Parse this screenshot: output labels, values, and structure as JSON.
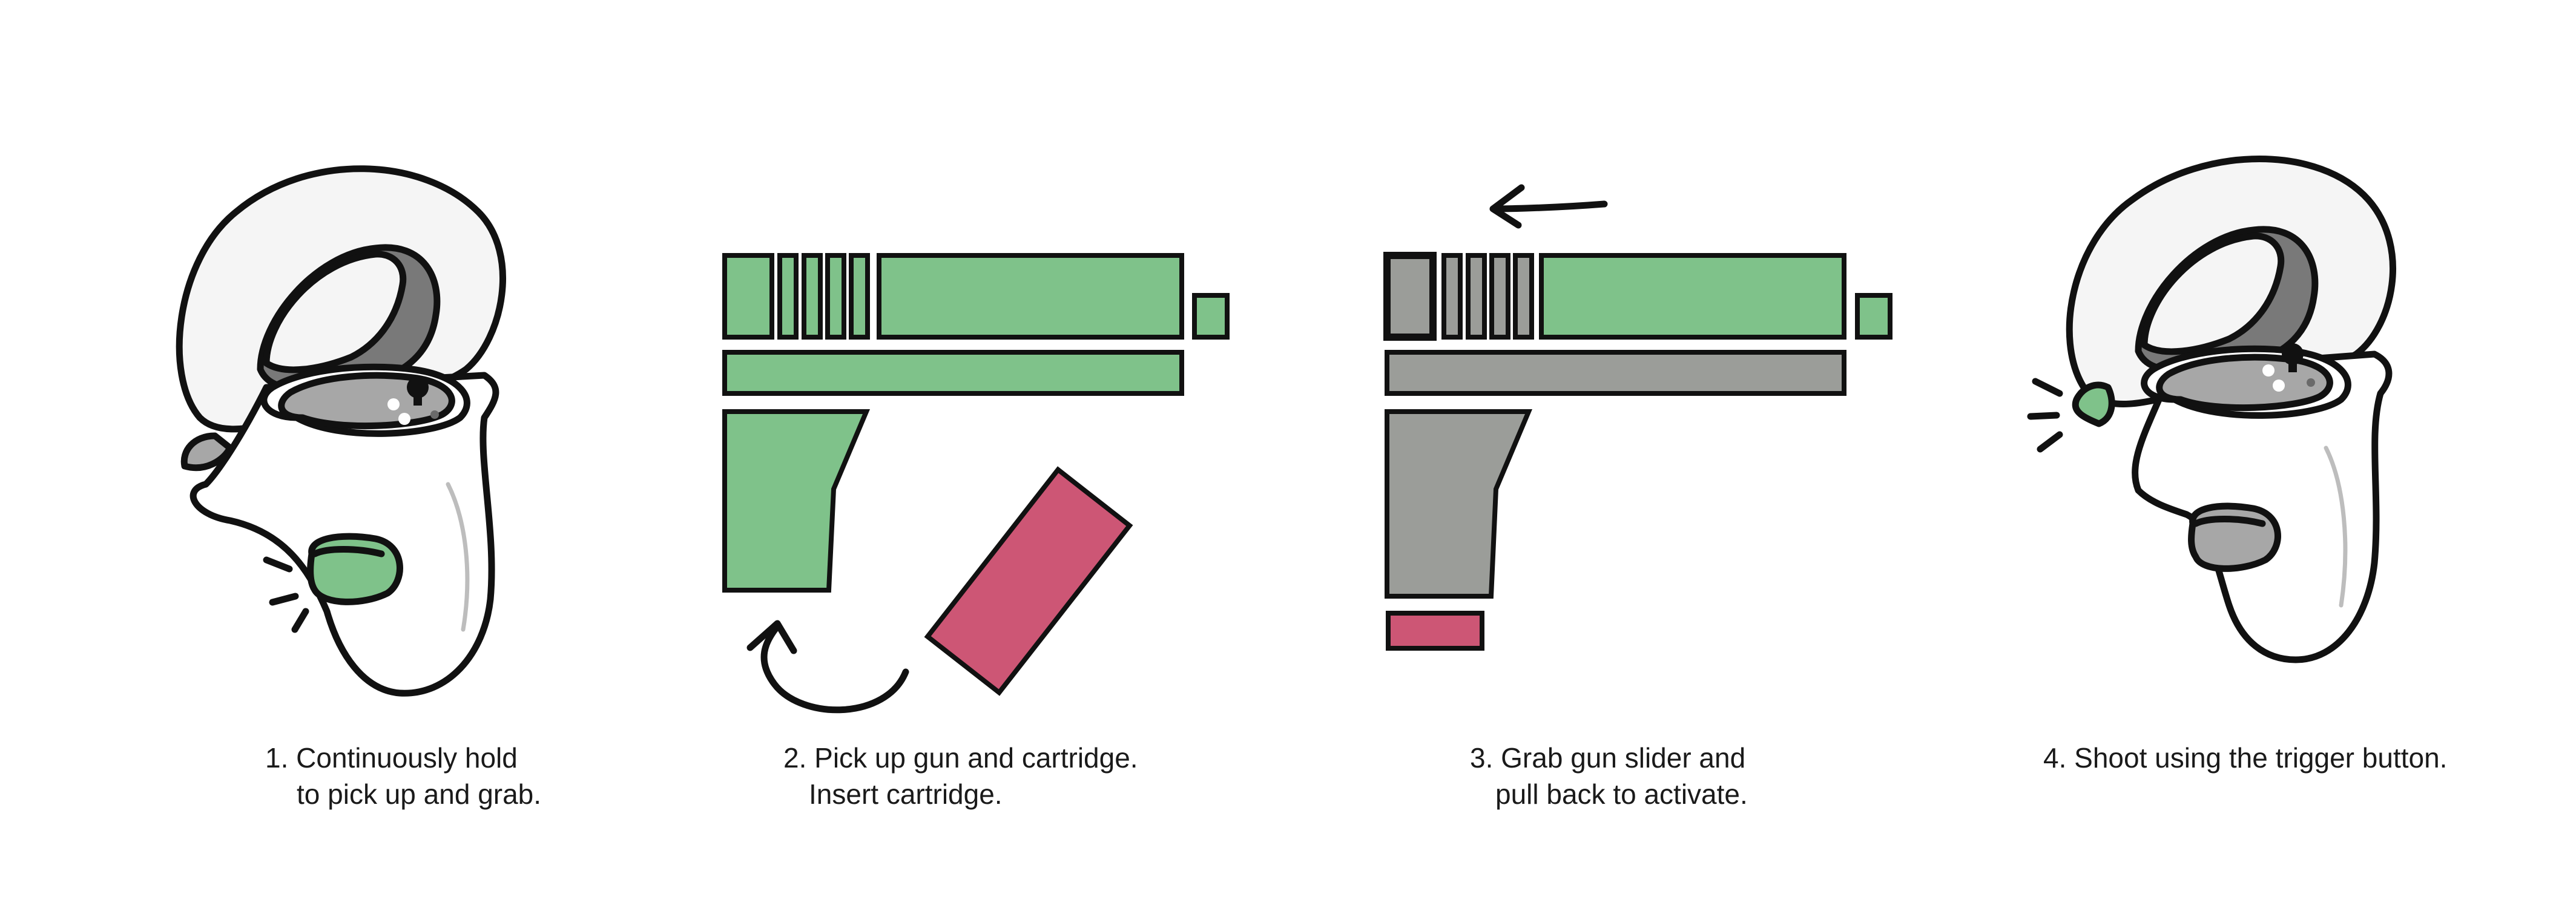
{
  "colors": {
    "green": "#7fc28a",
    "red": "#cd5675",
    "gray_light": "#9b9d99",
    "gray_dark": "#797979",
    "gray_mid": "#a7a7a7",
    "outline": "#111111",
    "shell": "#f5f5f5"
  },
  "steps": [
    {
      "line1": "1. Continuously hold",
      "line2": "to pick up and grab."
    },
    {
      "line1": "2. Pick up gun and cartridge.",
      "line2": "Insert cartridge."
    },
    {
      "line1": "3. Grab gun slider and",
      "line2": "pull back to activate."
    },
    {
      "line1": "4. Shoot using the trigger button.",
      "line2": ""
    }
  ]
}
